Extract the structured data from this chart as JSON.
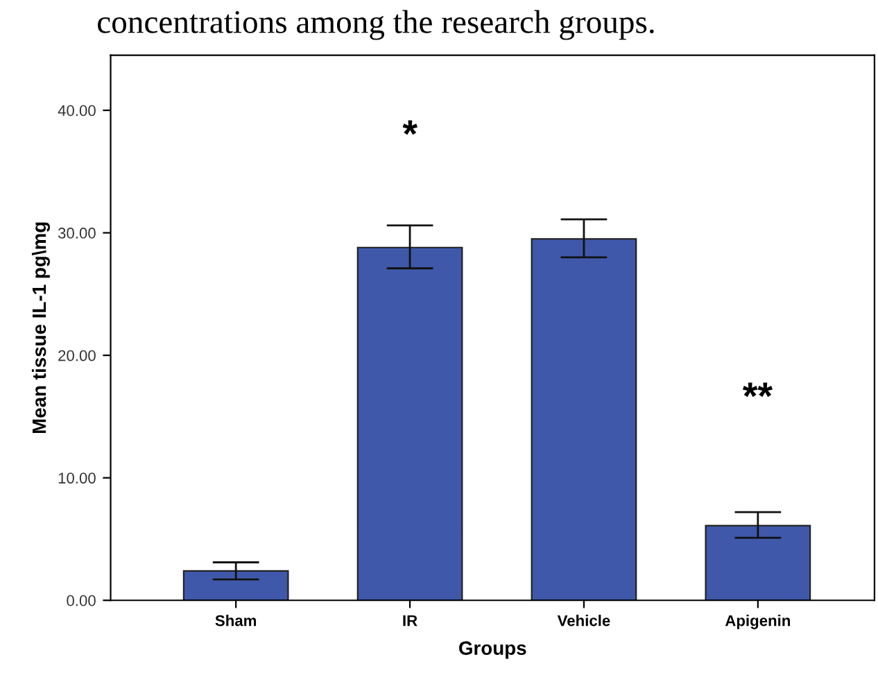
{
  "chart_data": {
    "type": "bar",
    "title": "concentrations among the research groups.",
    "xlabel": "Groups",
    "ylabel": "Mean tissue IL-1 pg\\mg",
    "categories": [
      "Sham",
      "IR",
      "Vehicle",
      "Apigenin"
    ],
    "values": [
      2.4,
      28.8,
      29.5,
      6.1
    ],
    "errors": [
      [
        1.7,
        3.1
      ],
      [
        27.1,
        30.6
      ],
      [
        28.0,
        31.1
      ],
      [
        5.1,
        7.2
      ]
    ],
    "color": "#3f58aa",
    "annotations": [
      "*",
      "**"
    ],
    "ylim": [
      0,
      44.5
    ],
    "yticks": [
      {
        "value": 0,
        "label": "0.00"
      },
      {
        "value": 10,
        "label": "10.00"
      },
      {
        "value": 20,
        "label": "20.00"
      },
      {
        "value": 30,
        "label": "30.00"
      },
      {
        "value": 40,
        "label": "40.00"
      }
    ],
    "grid": false
  }
}
